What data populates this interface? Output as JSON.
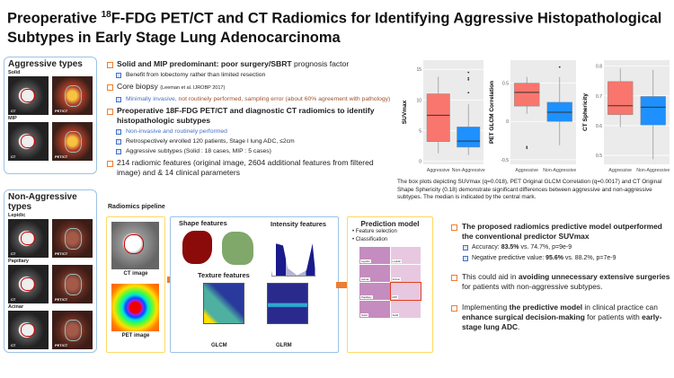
{
  "title": {
    "pre": "Preoperative ",
    "sup": "18",
    "post": "F-FDG PET/CT and CT Radiomics for Identifying Aggressive Histopathological Subtypes in Early Stage Lung Adenocarcinoma"
  },
  "left": {
    "aggressive_title": "Aggressive types",
    "aggressive": [
      {
        "label": "Solid"
      },
      {
        "label": "MIP"
      }
    ],
    "nonaggressive_title": "Non-Aggressive types",
    "nonaggressive": [
      {
        "label": "Lepidic"
      },
      {
        "label": "Papillary"
      },
      {
        "label": "Acinar"
      }
    ],
    "ct_tag": "CT",
    "pet_tag": "PET/CT"
  },
  "bullets": {
    "b1_bold": "Solid and MIP predominant: poor surgery/SBRT",
    "b1_rest": " prognosis factor",
    "b1_sub": "Benefit from lobectomy rather than limited resection",
    "b2": "Core biopsy ",
    "b2_ref": "(Leeman et al. IJROBP 2017)",
    "b2_sub_blue": "Minimally invasive, ",
    "b2_sub_brown": "not routinely performed, sampling error (about 60% agreement with pathology)",
    "b3": "Preoperative 18F-FDG PET/CT and diagnostic CT radiomics to identify histopathologic subtypes",
    "b3_subs": [
      "Non-invasive and routinely performed",
      "Retrospectively enrolled 120 patients, Stage I lung ADC, ≤2cm",
      "Aggressive subtypes (Solid : 18 cases, MIP : 5 cases)"
    ],
    "b4": "214 radiomic features (original image, 2604 additional features from filtered image) and  & 14 clinical parameters"
  },
  "pipeline": {
    "title": "Radiomics pipeline",
    "ct_image": "CT image",
    "pet_image": "PET image",
    "shape": "Shape features",
    "intensity": "Intensity features",
    "texture": "Texture features",
    "glcm": "GLCM",
    "glrm": "GLRM",
    "prediction": "Prediction model",
    "steps": [
      "Feature selection",
      "Classification"
    ],
    "histology_labels": [
      "Lepidic",
      "Lepidic",
      "Acinar",
      "Acinar",
      "Papillary",
      "MIP",
      "Solid",
      "Solid"
    ]
  },
  "caption": "The box plots depicting SUVmax (q=0.018), PET Original GLCM Correlation (q=0.0017) and CT Original Shape Sphericity (0.18) demonstrate significant differences between aggressive and non-aggressive subtypes. The median is indicated by the central mark.",
  "conclusions": {
    "c1": "The proposed radiomics predictive model outperformed the conventional predictor SUVmax",
    "acc_pre": "Accuracy: ",
    "acc_bold": "83.5%",
    "acc_post": " vs. 74.7%, p=9e-9",
    "npv_pre": "Negative predictive value: ",
    "npv_bold": "95.6%",
    "npv_post": " vs. 88.2%, p=7e-9",
    "c2_pre": "This could aid in ",
    "c2_bold": "avoiding unnecessary extensive surgeries",
    "c2_post": " for patients with non-aggressive subtypes.",
    "c3_a": "Implementing ",
    "c3_b": "the predictive model",
    "c3_c": " in clinical practice can ",
    "c3_d": "enhance surgical decision-making",
    "c3_e": " for patients with ",
    "c3_f": "early-stage lung ADC",
    "c3_g": "."
  },
  "colors": {
    "aggressive": "#f8766d",
    "nonaggressive": "#1e90ff",
    "panel_bg": "#ebebeb",
    "accent": "#ed7d31"
  },
  "chart_data": [
    {
      "type": "box",
      "ylabel": "SUVmax",
      "categories": [
        "Aggressive",
        "Non-Aggressive"
      ],
      "ylim": [
        -0.5,
        16.5
      ],
      "yticks": [
        0,
        5,
        10,
        15
      ],
      "boxes": [
        {
          "min": 1.3,
          "q1": 3.2,
          "median": 7.5,
          "q3": 11,
          "max": 13.8,
          "outliers": []
        },
        {
          "min": 1,
          "q1": 2.3,
          "median": 3.3,
          "q3": 5.6,
          "max": 9.3,
          "outliers": [
            11.2,
            13.3,
            13.6,
            14.5
          ]
        }
      ]
    },
    {
      "type": "box",
      "ylabel": "PET GLCM Correlation",
      "categories": [
        "Aggressive",
        "Non-Aggressive"
      ],
      "ylim": [
        -0.56,
        0.8
      ],
      "yticks": [
        -0.5,
        0.0,
        0.5
      ],
      "boxes": [
        {
          "min": 0.1,
          "q1": 0.2,
          "median": 0.38,
          "q3": 0.5,
          "max": 0.58,
          "outliers": [
            -0.33,
            -0.35
          ]
        },
        {
          "min": -0.31,
          "q1": 0,
          "median": 0.12,
          "q3": 0.25,
          "max": 0.58,
          "outliers": [
            0.71
          ]
        }
      ]
    },
    {
      "type": "box",
      "ylabel": "CT Sphericity",
      "categories": [
        "Aggressive",
        "Non-Aggressive"
      ],
      "ylim": [
        0.47,
        0.82
      ],
      "yticks": [
        0.5,
        0.6,
        0.7,
        0.8
      ],
      "boxes": [
        {
          "min": 0.595,
          "q1": 0.637,
          "median": 0.667,
          "q3": 0.748,
          "max": 0.792,
          "outliers": []
        },
        {
          "min": 0.487,
          "q1": 0.602,
          "median": 0.662,
          "q3": 0.698,
          "max": 0.787,
          "outliers": []
        }
      ]
    }
  ]
}
